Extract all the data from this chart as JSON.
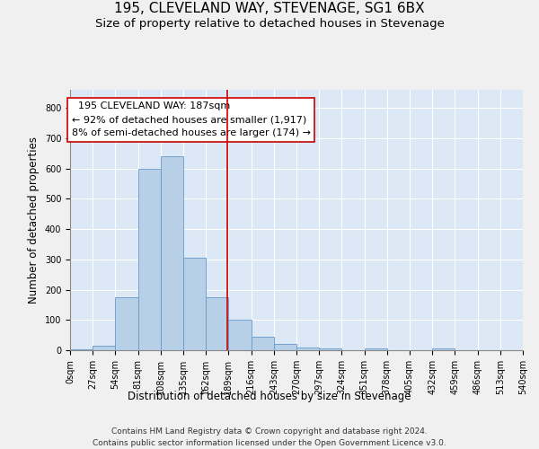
{
  "title": "195, CLEVELAND WAY, STEVENAGE, SG1 6BX",
  "subtitle": "Size of property relative to detached houses in Stevenage",
  "xlabel": "Distribution of detached houses by size in Stevenage",
  "ylabel": "Number of detached properties",
  "footer_line1": "Contains HM Land Registry data © Crown copyright and database right 2024.",
  "footer_line2": "Contains public sector information licensed under the Open Government Licence v3.0.",
  "annotation_line1": "  195 CLEVELAND WAY: 187sqm  ",
  "annotation_line2": "← 92% of detached houses are smaller (1,917)",
  "annotation_line3": "8% of semi-detached houses are larger (174) →",
  "bar_color": "#b8cfe8",
  "bar_edge_color": "#6699cc",
  "reference_line_x": 187,
  "reference_line_color": "#cc0000",
  "bin_edges": [
    0,
    27,
    54,
    81,
    108,
    135,
    162,
    189,
    216,
    243,
    270,
    297,
    324,
    351,
    378,
    405,
    432,
    459,
    486,
    513,
    540
  ],
  "bin_counts": [
    4,
    14,
    175,
    600,
    640,
    305,
    175,
    100,
    45,
    20,
    10,
    5,
    0,
    5,
    0,
    0,
    5,
    0,
    0,
    0
  ],
  "ylim": [
    0,
    860
  ],
  "yticks": [
    0,
    100,
    200,
    300,
    400,
    500,
    600,
    700,
    800
  ],
  "background_color": "#dce8f5",
  "grid_color": "#ffffff",
  "title_fontsize": 11,
  "subtitle_fontsize": 9.5,
  "axis_label_fontsize": 8.5,
  "tick_fontsize": 7,
  "annotation_fontsize": 8,
  "footer_fontsize": 6.5
}
